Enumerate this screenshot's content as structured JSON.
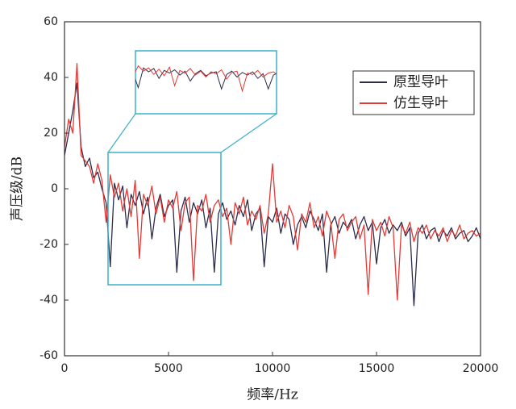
{
  "chart_data": {
    "type": "line",
    "x_label": "频率/Hz",
    "y_label": "声压级/dB",
    "x": [
      0,
      200,
      400,
      600,
      800,
      1000,
      1200,
      1400,
      1600,
      1800,
      2000,
      2200,
      2400,
      2600,
      2800,
      3000,
      3200,
      3400,
      3600,
      3800,
      4000,
      4200,
      4400,
      4600,
      4800,
      5000,
      5200,
      5400,
      5600,
      5800,
      6000,
      6200,
      6400,
      6600,
      6800,
      7000,
      7200,
      7400,
      7600,
      7800,
      8000,
      8200,
      8400,
      8600,
      8800,
      9000,
      9200,
      9400,
      9600,
      9800,
      10000,
      10200,
      10400,
      10600,
      10800,
      11000,
      11200,
      11400,
      11600,
      11800,
      12000,
      12200,
      12400,
      12600,
      12800,
      13000,
      13200,
      13400,
      13600,
      13800,
      14000,
      14200,
      14400,
      14600,
      14800,
      15000,
      15200,
      15400,
      15600,
      15800,
      16000,
      16200,
      16400,
      16600,
      16800,
      17000,
      17200,
      17400,
      17600,
      17800,
      18000,
      18200,
      18400,
      18600,
      18800,
      19000,
      19200,
      19400,
      19600,
      19800,
      20000
    ],
    "series": [
      {
        "name": "原型导叶",
        "color": "#2b2d4a",
        "values": [
          12,
          20,
          28,
          38,
          15,
          8,
          11,
          4,
          6,
          0,
          -5,
          -28,
          2,
          -4,
          1,
          -14,
          -2,
          -6,
          -1,
          -9,
          -3,
          -18,
          -7,
          -2,
          -10,
          -6,
          -4,
          -30,
          -8,
          -3,
          -12,
          -5,
          -9,
          -4,
          -14,
          -7,
          -30,
          -9,
          -5,
          -11,
          -8,
          -13,
          -6,
          -10,
          -4,
          -15,
          -9,
          -7,
          -28,
          -10,
          -12,
          -7,
          -16,
          -9,
          -11,
          -20,
          -13,
          -10,
          -14,
          -8,
          -11,
          -15,
          -9,
          -30,
          -13,
          -10,
          -16,
          -12,
          -14,
          -11,
          -18,
          -13,
          -10,
          -15,
          -12,
          -27,
          -14,
          -11,
          -16,
          -13,
          -15,
          -12,
          -17,
          -14,
          -42,
          -16,
          -13,
          -18,
          -15,
          -14,
          -19,
          -15,
          -17,
          -14,
          -18,
          -16,
          -15,
          -19,
          -17,
          -14,
          -18
        ]
      },
      {
        "name": "仿生导叶",
        "color": "#e53935",
        "values": [
          15,
          25,
          20,
          45,
          12,
          10,
          8,
          2,
          9,
          3,
          -12,
          5,
          -3,
          2,
          -8,
          0,
          -10,
          3,
          -25,
          -2,
          -6,
          1,
          -9,
          -3,
          -12,
          -4,
          -7,
          -1,
          -15,
          -5,
          -3,
          -33,
          -6,
          -8,
          -2,
          -12,
          -6,
          -4,
          -10,
          -7,
          -20,
          -5,
          -9,
          -3,
          -13,
          -8,
          -11,
          -6,
          -16,
          -9,
          9,
          -12,
          -8,
          -14,
          -6,
          -10,
          -22,
          -9,
          -12,
          -5,
          -14,
          -10,
          -17,
          -8,
          -12,
          -25,
          -11,
          -9,
          -15,
          -12,
          -10,
          -18,
          -13,
          -38,
          -11,
          -15,
          -12,
          -17,
          -10,
          -14,
          -40,
          -13,
          -16,
          -12,
          -19,
          -14,
          -16,
          -13,
          -18,
          -15,
          -17,
          -14,
          -19,
          -15,
          -17,
          -13,
          -18,
          -16,
          -15,
          -17,
          -16
        ]
      }
    ],
    "xlim": [
      0,
      20000
    ],
    "ylim": [
      -60,
      60
    ],
    "xticks": [
      0,
      5000,
      10000,
      15000,
      20000
    ],
    "yticks": [
      -60,
      -40,
      -20,
      0,
      20,
      40,
      60
    ]
  }
}
